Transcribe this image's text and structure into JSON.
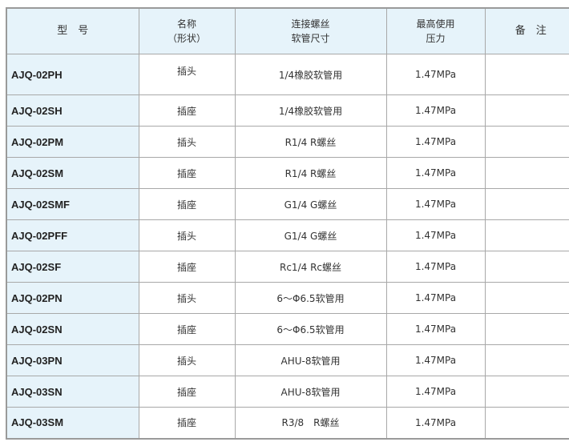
{
  "header": {
    "model": "型　号",
    "name_line1": "名称",
    "name_line2": "（形状）",
    "thread_line1": "连接螺丝",
    "thread_line2": "软管尺寸",
    "pressure_line1": "最高使用",
    "pressure_line2": "压力",
    "remarks": "备　注"
  },
  "rows": [
    {
      "model": "AJQ-02PH",
      "name": "插头",
      "thread": "1/4橡胶软管用",
      "pressure": "1.47MPa",
      "remarks": ""
    },
    {
      "model": "AJQ-02SH",
      "name": "插座",
      "thread": "1/4橡胶软管用",
      "pressure": "1.47MPa",
      "remarks": ""
    },
    {
      "model": "AJQ-02PM",
      "name": "插头",
      "thread": "R1/4 R螺丝",
      "pressure": "1.47MPa",
      "remarks": ""
    },
    {
      "model": "AJQ-02SM",
      "name": "插座",
      "thread": "R1/4 R螺丝",
      "pressure": "1.47MPa",
      "remarks": ""
    },
    {
      "model": "AJQ-02SMF",
      "name": "插座",
      "thread": "G1/4 G螺丝",
      "pressure": "1.47MPa",
      "remarks": ""
    },
    {
      "model": "AJQ-02PFF",
      "name": "插头",
      "thread": "G1/4 G螺丝",
      "pressure": "1.47MPa",
      "remarks": ""
    },
    {
      "model": "AJQ-02SF",
      "name": "插座",
      "thread": "Rc1/4 Rc螺丝",
      "pressure": "1.47MPa",
      "remarks": ""
    },
    {
      "model": "AJQ-02PN",
      "name": "插头",
      "thread": "6～Φ6.5软管用",
      "pressure": "1.47MPa",
      "remarks": ""
    },
    {
      "model": "AJQ-02SN",
      "name": "插座",
      "thread": "6～Φ6.5软管用",
      "pressure": "1.47MPa",
      "remarks": ""
    },
    {
      "model": "AJQ-03PN",
      "name": "插头",
      "thread": "AHU-8软管用",
      "pressure": "1.47MPa",
      "remarks": ""
    },
    {
      "model": "AJQ-03SN",
      "name": "插座",
      "thread": "AHU-8软管用",
      "pressure": "1.47MPa",
      "remarks": ""
    },
    {
      "model": "AJQ-03SM",
      "name": "插座",
      "thread": "R3/8　R螺丝",
      "pressure": "1.47MPa",
      "remarks": ""
    }
  ]
}
